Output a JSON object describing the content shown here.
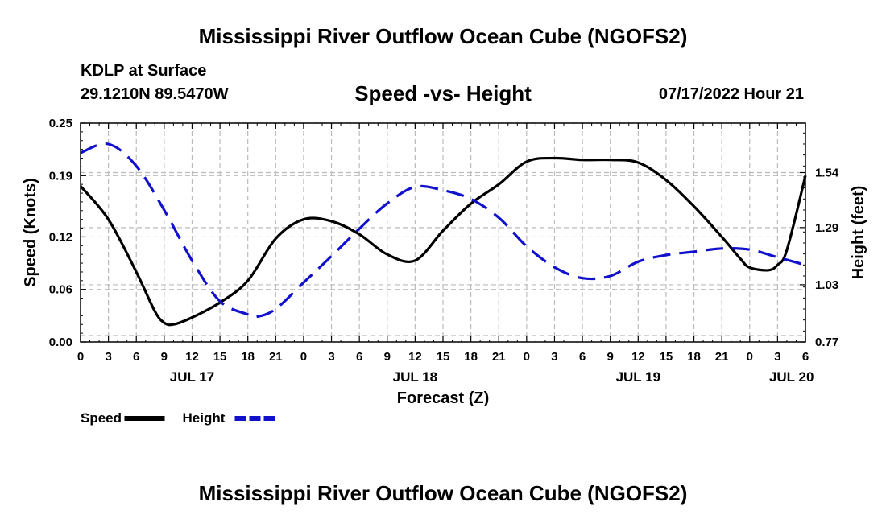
{
  "header": {
    "title": "Mississippi River Outflow Ocean Cube (NGOFS2)",
    "station": "KDLP at Surface",
    "coords": "29.1210N  89.5470W",
    "subtitle": "Speed -vs- Height",
    "datetime": "07/17/2022 Hour 21"
  },
  "footer": {
    "title": "Mississippi River Outflow Ocean Cube (NGOFS2)"
  },
  "chart_data": {
    "type": "line",
    "title": "Speed -vs- Height",
    "xlabel": "Forecast (Z)",
    "ylabel": "Speed (Knots)",
    "y2label": "Height (feet)",
    "x_unit": "forecast hours from Jul 17 00Z",
    "xlim": [
      0,
      78
    ],
    "ylim": [
      0,
      0.25
    ],
    "y2lim": [
      0.77,
      1.765
    ],
    "x_ticks": [
      0,
      3,
      6,
      9,
      12,
      15,
      18,
      21,
      24,
      27,
      30,
      33,
      36,
      39,
      42,
      45,
      48,
      51,
      54,
      57,
      60,
      63,
      66,
      69,
      72,
      75,
      78
    ],
    "x_tick_labels": [
      "0",
      "3",
      "6",
      "9",
      "12",
      "15",
      "18",
      "21",
      "0",
      "3",
      "6",
      "9",
      "12",
      "15",
      "18",
      "21",
      "0",
      "3",
      "6",
      "9",
      "12",
      "15",
      "18",
      "21",
      "0",
      "3",
      "6"
    ],
    "date_labels": [
      {
        "x": 12,
        "label": "JUL 17"
      },
      {
        "x": 36,
        "label": "JUL 18"
      },
      {
        "x": 60,
        "label": "JUL 19"
      },
      {
        "x": 76.5,
        "label": "JUL 20"
      }
    ],
    "y_ticks": [
      0,
      0.06,
      0.12,
      0.19,
      0.25
    ],
    "y_tick_labels": [
      "0.00",
      "0.06",
      "0.12",
      "0.19",
      "0.25"
    ],
    "y2_ticks": [
      0.77,
      1.03,
      1.29,
      1.54
    ],
    "y2_tick_labels": [
      "0.77",
      "1.03",
      "1.29",
      "1.54"
    ],
    "grid": true,
    "legend": "bottom-left",
    "series": [
      {
        "name": "Speed",
        "axis": "left",
        "color": "#000000",
        "style": "solid",
        "x": [
          0,
          3,
          6,
          8,
          9,
          10,
          12,
          15,
          18,
          21,
          24,
          27,
          30,
          33,
          36,
          39,
          42,
          45,
          48,
          51,
          54,
          57,
          60,
          63,
          66,
          69,
          71,
          72,
          74,
          75,
          76,
          78
        ],
        "values": [
          0.178,
          0.14,
          0.08,
          0.035,
          0.022,
          0.02,
          0.028,
          0.045,
          0.07,
          0.118,
          0.14,
          0.138,
          0.123,
          0.1,
          0.093,
          0.127,
          0.158,
          0.18,
          0.206,
          0.21,
          0.208,
          0.208,
          0.205,
          0.185,
          0.155,
          0.12,
          0.095,
          0.085,
          0.082,
          0.088,
          0.105,
          0.19
        ]
      },
      {
        "name": "Height",
        "axis": "right",
        "color": "#1111cc",
        "style": "dashed",
        "x": [
          0,
          3,
          6,
          9,
          12,
          15,
          18,
          19,
          21,
          24,
          27,
          30,
          33,
          36,
          39,
          42,
          45,
          48,
          51,
          54,
          57,
          60,
          63,
          66,
          69,
          72,
          75,
          78
        ],
        "values": [
          1.63,
          1.67,
          1.57,
          1.37,
          1.14,
          0.955,
          0.895,
          0.885,
          0.92,
          1.04,
          1.16,
          1.285,
          1.4,
          1.475,
          1.46,
          1.42,
          1.335,
          1.205,
          1.11,
          1.06,
          1.07,
          1.135,
          1.165,
          1.18,
          1.195,
          1.19,
          1.155,
          1.12
        ]
      }
    ]
  }
}
